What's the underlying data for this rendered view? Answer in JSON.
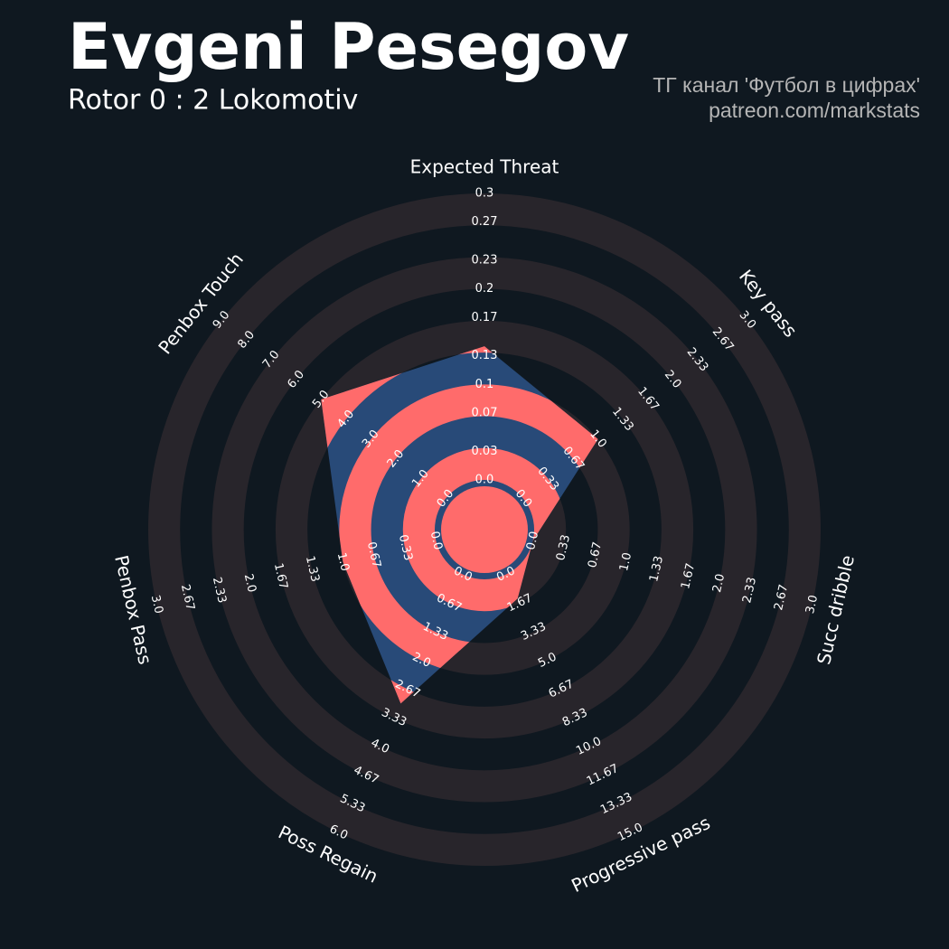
{
  "title": "Evgeni Pesegov",
  "subtitle": "Rotor 0 : 2 Lokomotiv",
  "credits": [
    "ТГ канал 'Футбол в цифрах'",
    "patreon.com/markstats"
  ],
  "chart_data": {
    "type": "radar",
    "categories": [
      "Expected Threat",
      "Key pass",
      "Succ dribble",
      "Progressive pass",
      "Poss Regain",
      "Penbox Pass",
      "Penbox Touch"
    ],
    "values": [
      0.14,
      1.0,
      0,
      1.4,
      3.0,
      1.0,
      5.0
    ],
    "ranges": [
      [
        0,
        0.3
      ],
      [
        0,
        3
      ],
      [
        0,
        3
      ],
      [
        0,
        15
      ],
      [
        0,
        6
      ],
      [
        0,
        3
      ],
      [
        0,
        9
      ]
    ],
    "ticks": [
      [
        {
          "value": 0,
          "label": "0.0"
        },
        0.03,
        0.07,
        0.1,
        0.13,
        0.17,
        0.2,
        0.23,
        0.27,
        0.3
      ],
      [
        {
          "value": 0,
          "label": "0.0"
        },
        0.33,
        0.67,
        {
          "value": 1,
          "label": "1.0"
        },
        1.33,
        1.67,
        {
          "value": 2,
          "label": "2.0"
        },
        2.33,
        2.67,
        {
          "value": 3,
          "label": "3.0"
        }
      ],
      [
        {
          "value": 0,
          "label": "0.0"
        },
        0.33,
        0.67,
        {
          "value": 1,
          "label": "1.0"
        },
        1.33,
        1.67,
        {
          "value": 2,
          "label": "2.0"
        },
        2.33,
        2.67,
        {
          "value": 3,
          "label": "3.0"
        }
      ],
      [
        {
          "value": 0,
          "label": "0.0"
        },
        1.67,
        3.33,
        {
          "value": 5,
          "label": "5.0"
        },
        6.67,
        8.33,
        {
          "value": 10,
          "label": "10.0"
        },
        11.67,
        13.33,
        {
          "value": 15,
          "label": "15.0"
        }
      ],
      [
        {
          "value": 0,
          "label": "0.0"
        },
        0.67,
        1.33,
        {
          "value": 2,
          "label": "2.0"
        },
        2.67,
        3.33,
        {
          "value": 4,
          "label": "4.0"
        },
        4.67,
        5.33,
        {
          "value": 6,
          "label": "6.0"
        }
      ],
      [
        {
          "value": 0,
          "label": "0.0"
        },
        0.33,
        0.67,
        {
          "value": 1,
          "label": "1.0"
        },
        1.33,
        1.67,
        {
          "value": 2,
          "label": "2.0"
        },
        2.33,
        2.67,
        {
          "value": 3,
          "label": "3.0"
        }
      ],
      [
        {
          "value": 0,
          "label": "0.0"
        },
        {
          "value": 1,
          "label": "1.0"
        },
        {
          "value": 2,
          "label": "2.0"
        },
        {
          "value": 3,
          "label": "3.0"
        },
        {
          "value": 4,
          "label": "4.0"
        },
        {
          "value": 5,
          "label": "5.0"
        },
        {
          "value": 6,
          "label": "6.0"
        },
        {
          "value": 7,
          "label": "7.0"
        },
        {
          "value": 8,
          "label": "8.0"
        },
        {
          "value": 9,
          "label": "9.0"
        }
      ]
    ],
    "color": "#284a78",
    "ring_color": "#28252b",
    "highlight_color": "#ff6b6b"
  }
}
